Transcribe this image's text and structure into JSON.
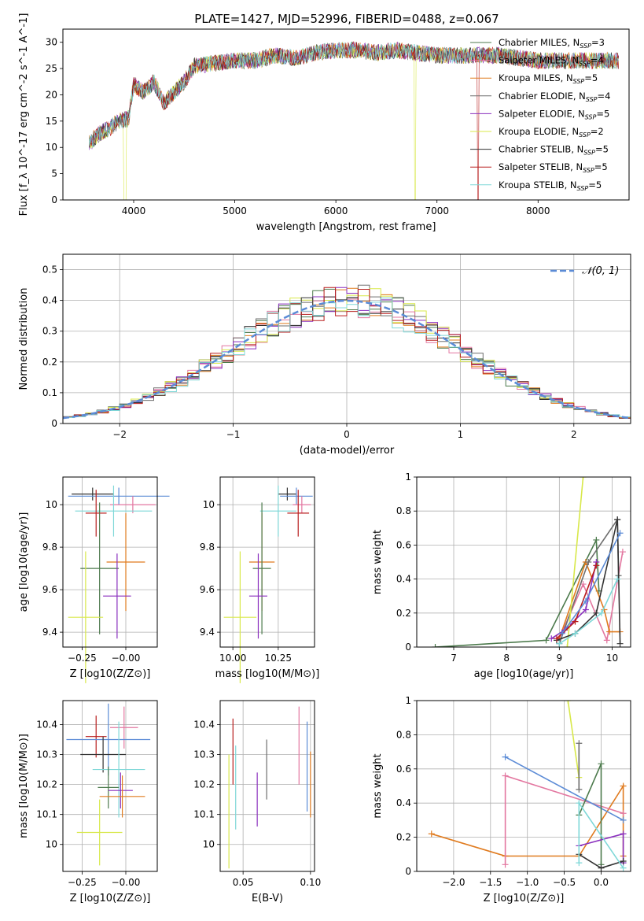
{
  "colors": {
    "chabrier_miles": "#4c7a4c",
    "salpeter_miles": "#e377a0",
    "kroupa_miles": "#e07b1f",
    "chabrier_elodie": "#6e6e6e",
    "salpeter_elodie": "#8a2fbe",
    "kroupa_elodie": "#d8e84a",
    "chabrier_stelib": "#333333",
    "salpeter_stelib": "#b81d1d",
    "kroupa_stelib": "#7fd8d8",
    "gauss": "#5b8bd6",
    "grid": "#b0b0b0"
  },
  "chart_data": [
    {
      "id": "spectrum",
      "type": "line",
      "title": "PLATE=1427, MJD=52996, FIBERID=0488, z=0.067",
      "xlabel": "wavelength [Angstrom, rest frame]",
      "ylabel": "Flux [f_λ 10^-17 erg cm^-2 s^-1 A^-1]",
      "xlim": [
        3300,
        8900
      ],
      "ylim": [
        0,
        32.5
      ],
      "xticks": [
        4000,
        5000,
        6000,
        7000,
        8000
      ],
      "yticks": [
        0,
        5,
        10,
        15,
        20,
        25,
        30
      ],
      "grid": false,
      "legend_position": "top-right",
      "continuum": {
        "x": [
          3550,
          3650,
          3750,
          3850,
          3950,
          4000,
          4100,
          4200,
          4300,
          4400,
          4500,
          4600,
          4800,
          5000,
          5200,
          5400,
          5600,
          5800,
          6000,
          6200,
          6400,
          6600,
          6800,
          7000,
          7200,
          7400,
          7600,
          7800,
          8000,
          8200,
          8400,
          8600,
          8800
        ],
        "y": [
          10.5,
          12.5,
          13.5,
          15,
          15.5,
          22,
          20.5,
          22.5,
          18.5,
          20.5,
          22.5,
          25.5,
          26,
          26.5,
          26.5,
          27.5,
          27,
          28,
          28.5,
          28.5,
          28,
          28.5,
          28,
          27.5,
          27.5,
          27.5,
          27.5,
          27,
          26.5,
          26.5,
          26.5,
          26.5,
          26.5
        ]
      },
      "series": [
        {
          "name": "Chabrier MILES, N_SSP=3",
          "legend_main": "Chabrier MILES, N",
          "legend_sub": "SSP",
          "legend_tail": "=3",
          "color_key": "chabrier_miles"
        },
        {
          "name": "Salpeter MILES, N_SSP=4",
          "legend_main": "Salpeter MILES, N",
          "legend_sub": "SSP",
          "legend_tail": "=4",
          "color_key": "salpeter_miles"
        },
        {
          "name": "Kroupa MILES, N_SSP=5",
          "legend_main": "Kroupa MILES, N",
          "legend_sub": "SSP",
          "legend_tail": "=5",
          "color_key": "kroupa_miles"
        },
        {
          "name": "Chabrier ELODIE, N_SSP=4",
          "legend_main": "Chabrier ELODIE, N",
          "legend_sub": "SSP",
          "legend_tail": "=4",
          "color_key": "chabrier_elodie"
        },
        {
          "name": "Salpeter ELODIE, N_SSP=5",
          "legend_main": "Salpeter ELODIE, N",
          "legend_sub": "SSP",
          "legend_tail": "=5",
          "color_key": "salpeter_elodie"
        },
        {
          "name": "Kroupa ELODIE, N_SSP=2",
          "legend_main": "Kroupa ELODIE, N",
          "legend_sub": "SSP",
          "legend_tail": "=2",
          "color_key": "kroupa_elodie"
        },
        {
          "name": "Chabrier STELIB, N_SSP=5",
          "legend_main": "Chabrier STELIB, N",
          "legend_sub": "SSP",
          "legend_tail": "=5",
          "color_key": "chabrier_stelib"
        },
        {
          "name": "Salpeter STELIB, N_SSP=5",
          "legend_main": "Salpeter STELIB, N",
          "legend_sub": "SSP",
          "legend_tail": "=5",
          "color_key": "salpeter_stelib"
        },
        {
          "name": "Kroupa STELIB, N_SSP=5",
          "legend_main": "Kroupa STELIB, N",
          "legend_sub": "SSP",
          "legend_tail": "=5",
          "color_key": "kroupa_stelib"
        }
      ]
    },
    {
      "id": "residuals",
      "type": "bar",
      "xlabel": "(data-model)/error",
      "ylabel": "Normed distribution",
      "xlim": [
        -2.5,
        2.5
      ],
      "ylim": [
        0,
        0.55
      ],
      "xticks": [
        -2,
        -1,
        0,
        1,
        2
      ],
      "xtick_labels": [
        "−2",
        "−1",
        "0",
        "1",
        "2"
      ],
      "yticks": [
        0,
        0.1,
        0.2,
        0.3,
        0.4,
        0.5
      ],
      "grid": true,
      "legend_position": "top-right",
      "legend_label": "𝒩(0, 1)",
      "bin_width": 0.1,
      "bin_start": -2.5,
      "hist_model_order": [
        "chabrier_miles",
        "salpeter_miles",
        "kroupa_miles",
        "chabrier_elodie",
        "salpeter_elodie",
        "kroupa_elodie",
        "chabrier_stelib",
        "salpeter_stelib",
        "kroupa_stelib"
      ],
      "gaussian": {
        "mean": 0,
        "sigma": 1
      }
    },
    {
      "id": "age_vs_Z",
      "type": "scatter",
      "xlabel": "Z [log10(Z/Z⊙)]",
      "ylabel": "age [log10(age/yr)]",
      "xlim": [
        -0.36,
        0.18
      ],
      "ylim": [
        9.33,
        10.13
      ],
      "xticks": [
        -0.25,
        0.0
      ],
      "xtick_labels": [
        "−0.25",
        "−0.00"
      ],
      "yticks": [
        9.4,
        9.6,
        9.8,
        10.0
      ],
      "grid": true,
      "points": [
        {
          "color_key": "chabrier_stelib",
          "x": -0.19,
          "xerr": 0.12,
          "y": 10.05,
          "yerr": 0.03
        },
        {
          "color_key": "gauss",
          "x": -0.04,
          "xerr": 0.29,
          "y": 10.04,
          "yerr": 0.04
        },
        {
          "color_key": "salpeter_miles",
          "x": 0.04,
          "xerr": 0.13,
          "y": 10.0,
          "yerr": 0.04
        },
        {
          "color_key": "kroupa_stelib",
          "x": -0.07,
          "xerr": 0.22,
          "y": 9.97,
          "yerr": 0.12
        },
        {
          "color_key": "salpeter_stelib",
          "x": -0.17,
          "xerr": 0.06,
          "y": 9.96,
          "yerr": 0.11
        },
        {
          "color_key": "kroupa_miles",
          "x": 0.0,
          "xerr": 0.11,
          "y": 9.73,
          "yerr": 0.23
        },
        {
          "color_key": "chabrier_miles",
          "x": -0.15,
          "xerr": 0.11,
          "y": 9.7,
          "yerr": 0.31
        },
        {
          "color_key": "salpeter_elodie",
          "x": -0.05,
          "xerr": 0.08,
          "y": 9.57,
          "yerr": 0.2
        },
        {
          "color_key": "kroupa_elodie",
          "x": -0.23,
          "xerr": 0.1,
          "y": 9.47,
          "yerr": 0.31
        }
      ]
    },
    {
      "id": "age_vs_mass",
      "type": "scatter",
      "xlabel": "mass [log10(M/M⊙)]",
      "ylabel": "",
      "xlim": [
        9.93,
        10.45
      ],
      "ylim": [
        9.33,
        10.13
      ],
      "xticks": [
        10.0,
        10.25
      ],
      "xtick_labels": [
        "10.00",
        "10.25"
      ],
      "yticks": [
        9.4,
        9.6,
        9.8,
        10.0
      ],
      "grid": true,
      "points": [
        {
          "color_key": "chabrier_stelib",
          "x": 10.3,
          "xerr": 0.05,
          "y": 10.05,
          "yerr": 0.03
        },
        {
          "color_key": "gauss",
          "x": 10.35,
          "xerr": 0.09,
          "y": 10.04,
          "yerr": 0.04
        },
        {
          "color_key": "salpeter_miles",
          "x": 10.38,
          "xerr": 0.05,
          "y": 10.0,
          "yerr": 0.04
        },
        {
          "color_key": "kroupa_stelib",
          "x": 10.25,
          "xerr": 0.1,
          "y": 9.97,
          "yerr": 0.12
        },
        {
          "color_key": "salpeter_stelib",
          "x": 10.36,
          "xerr": 0.06,
          "y": 9.96,
          "yerr": 0.11
        },
        {
          "color_key": "kroupa_miles",
          "x": 10.16,
          "xerr": 0.07,
          "y": 9.73,
          "yerr": 0.23
        },
        {
          "color_key": "chabrier_miles",
          "x": 10.16,
          "xerr": 0.05,
          "y": 9.7,
          "yerr": 0.31
        },
        {
          "color_key": "salpeter_elodie",
          "x": 10.14,
          "xerr": 0.05,
          "y": 9.57,
          "yerr": 0.2
        },
        {
          "color_key": "kroupa_elodie",
          "x": 10.04,
          "xerr": 0.09,
          "y": 9.47,
          "yerr": 0.31
        }
      ]
    },
    {
      "id": "weight_vs_age",
      "type": "line",
      "xlabel": "age [log10(age/yr)]",
      "ylabel": "mass weight",
      "xlim": [
        6.3,
        10.35
      ],
      "ylim": [
        0,
        1
      ],
      "xticks": [
        7,
        8,
        9,
        10
      ],
      "yticks": [
        0,
        0.2,
        0.4,
        0.6,
        0.8,
        1.0
      ],
      "grid": true,
      "series": [
        {
          "color_key": "chabrier_miles",
          "points": [
            [
              6.65,
              0.0
            ],
            [
              8.75,
              0.04
            ],
            [
              9.7,
              0.63
            ],
            [
              9.75,
              0.33
            ]
          ]
        },
        {
          "color_key": "salpeter_miles",
          "points": [
            [
              9.0,
              0.05
            ],
            [
              9.45,
              0.37
            ],
            [
              9.9,
              0.04
            ],
            [
              10.2,
              0.56
            ]
          ]
        },
        {
          "color_key": "kroupa_miles",
          "points": [
            [
              9.0,
              0.05
            ],
            [
              9.5,
              0.5
            ],
            [
              9.85,
              0.22
            ],
            [
              9.95,
              0.09
            ],
            [
              10.15,
              0.09
            ]
          ]
        },
        {
          "color_key": "chabrier_elodie",
          "points": [
            [
              9.0,
              0.02
            ],
            [
              9.55,
              0.5
            ],
            [
              10.1,
              0.75
            ],
            [
              10.12,
              0.42
            ]
          ]
        },
        {
          "color_key": "salpeter_elodie",
          "points": [
            [
              8.85,
              0.05
            ],
            [
              9.1,
              0.1
            ],
            [
              9.5,
              0.22
            ],
            [
              9.7,
              0.5
            ]
          ]
        },
        {
          "color_key": "kroupa_elodie",
          "points": [
            [
              9.15,
              0.0
            ],
            [
              9.45,
              1.0
            ]
          ]
        },
        {
          "color_key": "chabrier_stelib",
          "points": [
            [
              8.95,
              0.04
            ],
            [
              9.3,
              0.08
            ],
            [
              9.7,
              0.2
            ],
            [
              10.1,
              0.75
            ],
            [
              10.15,
              0.02
            ]
          ]
        },
        {
          "color_key": "salpeter_stelib",
          "points": [
            [
              8.95,
              0.05
            ],
            [
              9.3,
              0.15
            ],
            [
              9.7,
              0.48
            ]
          ]
        },
        {
          "color_key": "kroupa_stelib",
          "points": [
            [
              9.0,
              0.02
            ],
            [
              9.3,
              0.08
            ],
            [
              9.8,
              0.2
            ],
            [
              10.1,
              0.4
            ]
          ]
        },
        {
          "color_key": "gauss",
          "points": [
            [
              9.05,
              0.08
            ],
            [
              9.5,
              0.27
            ],
            [
              10.15,
              0.67
            ]
          ]
        }
      ]
    },
    {
      "id": "mass_vs_Z",
      "type": "scatter",
      "xlabel": "Z [log10(Z/Z⊙)]",
      "ylabel": "mass [log10(M/M⊙)]",
      "xlim": [
        -0.36,
        0.18
      ],
      "ylim": [
        9.91,
        10.48
      ],
      "xticks": [
        -0.25,
        0.0
      ],
      "xtick_labels": [
        "−0.25",
        "−0.00"
      ],
      "yticks": [
        10.0,
        10.1,
        10.2,
        10.3,
        10.4
      ],
      "grid": true,
      "points": [
        {
          "color_key": "salpeter_miles",
          "x": -0.01,
          "xerr": 0.08,
          "y": 10.39,
          "yerr": 0.07
        },
        {
          "color_key": "salpeter_stelib",
          "x": -0.17,
          "xerr": 0.06,
          "y": 10.36,
          "yerr": 0.07
        },
        {
          "color_key": "gauss",
          "x": -0.1,
          "xerr": 0.24,
          "y": 10.35,
          "yerr": 0.12
        },
        {
          "color_key": "chabrier_stelib",
          "x": -0.13,
          "xerr": 0.13,
          "y": 10.3,
          "yerr": 0.06
        },
        {
          "color_key": "kroupa_stelib",
          "x": -0.04,
          "xerr": 0.15,
          "y": 10.25,
          "yerr": 0.16
        },
        {
          "color_key": "chabrier_miles",
          "x": -0.1,
          "xerr": 0.06,
          "y": 10.19,
          "yerr": 0.07
        },
        {
          "color_key": "salpeter_elodie",
          "x": -0.03,
          "xerr": 0.07,
          "y": 10.18,
          "yerr": 0.06
        },
        {
          "color_key": "kroupa_miles",
          "x": -0.02,
          "xerr": 0.13,
          "y": 10.16,
          "yerr": 0.07
        },
        {
          "color_key": "kroupa_elodie",
          "x": -0.15,
          "xerr": 0.13,
          "y": 10.04,
          "yerr": 0.11
        }
      ]
    },
    {
      "id": "mass_vs_ebv",
      "type": "scatter",
      "xlabel": "E(B-V)",
      "ylabel": "",
      "xlim": [
        0.033,
        0.103
      ],
      "ylim": [
        9.91,
        10.48
      ],
      "xticks": [
        0.05,
        0.1
      ],
      "xtick_labels": [
        "0.05",
        "0.10"
      ],
      "yticks": [
        10.0,
        10.1,
        10.2,
        10.3,
        10.4
      ],
      "grid": true,
      "points": [
        {
          "color_key": "salpeter_stelib",
          "x": 0.0425,
          "y": 10.31,
          "yerr": 0.11
        },
        {
          "color_key": "kroupa_elodie",
          "x": 0.0395,
          "y": 10.11,
          "yerr": 0.19
        },
        {
          "color_key": "kroupa_stelib",
          "x": 0.0445,
          "y": 10.19,
          "yerr": 0.14
        },
        {
          "color_key": "salpeter_elodie",
          "x": 0.0605,
          "y": 10.15,
          "yerr": 0.09
        },
        {
          "color_key": "chabrier_elodie",
          "x": 0.0675,
          "y": 10.25,
          "yerr": 0.1
        },
        {
          "color_key": "salpeter_miles",
          "x": 0.0915,
          "y": 10.33,
          "yerr": 0.13
        },
        {
          "color_key": "gauss",
          "x": 0.0975,
          "y": 10.26,
          "yerr": 0.15
        },
        {
          "color_key": "kroupa_miles",
          "x": 0.1,
          "y": 10.2,
          "yerr": 0.11
        }
      ]
    },
    {
      "id": "weight_vs_Z",
      "type": "line",
      "xlabel": "Z [log10(Z/Z⊙)]",
      "ylabel": "mass weight",
      "xlim": [
        -2.5,
        0.4
      ],
      "ylim": [
        0,
        1
      ],
      "xticks": [
        -2.0,
        -1.5,
        -1.0,
        -0.5,
        0.0
      ],
      "xtick_labels": [
        "−2.0",
        "−1.5",
        "−1.0",
        "−0.5",
        "0.0"
      ],
      "yticks": [
        0,
        0.2,
        0.4,
        0.6,
        0.8,
        1.0
      ],
      "grid": true,
      "series": [
        {
          "color_key": "kroupa_miles",
          "points": [
            [
              -2.3,
              0.22
            ],
            [
              -1.3,
              0.09
            ],
            [
              -0.3,
              0.09
            ],
            [
              0.3,
              0.5
            ],
            [
              0.3,
              0.09
            ]
          ]
        },
        {
          "color_key": "salpeter_miles",
          "points": [
            [
              -1.3,
              0.04
            ],
            [
              -1.3,
              0.56
            ],
            [
              0.3,
              0.34
            ]
          ]
        },
        {
          "color_key": "gauss",
          "points": [
            [
              -1.3,
              0.67
            ],
            [
              0.3,
              0.3
            ]
          ]
        },
        {
          "color_key": "kroupa_elodie",
          "points": [
            [
              -0.45,
              1.0
            ],
            [
              -0.3,
              0.55
            ]
          ]
        },
        {
          "color_key": "chabrier_miles",
          "points": [
            [
              -0.3,
              0.33
            ],
            [
              0.0,
              0.63
            ],
            [
              0.0,
              0.04
            ]
          ]
        },
        {
          "color_key": "chabrier_elodie",
          "points": [
            [
              -0.3,
              0.48
            ],
            [
              -0.3,
              0.75
            ]
          ]
        },
        {
          "color_key": "salpeter_elodie",
          "points": [
            [
              -0.3,
              0.15
            ],
            [
              0.3,
              0.22
            ],
            [
              0.3,
              0.05
            ]
          ]
        },
        {
          "color_key": "chabrier_stelib",
          "points": [
            [
              -0.3,
              0.1
            ],
            [
              0.0,
              0.02
            ],
            [
              0.3,
              0.06
            ]
          ]
        },
        {
          "color_key": "kroupa_stelib",
          "points": [
            [
              -0.3,
              0.05
            ],
            [
              -0.3,
              0.4
            ],
            [
              0.3,
              0.02
            ]
          ]
        }
      ]
    }
  ]
}
